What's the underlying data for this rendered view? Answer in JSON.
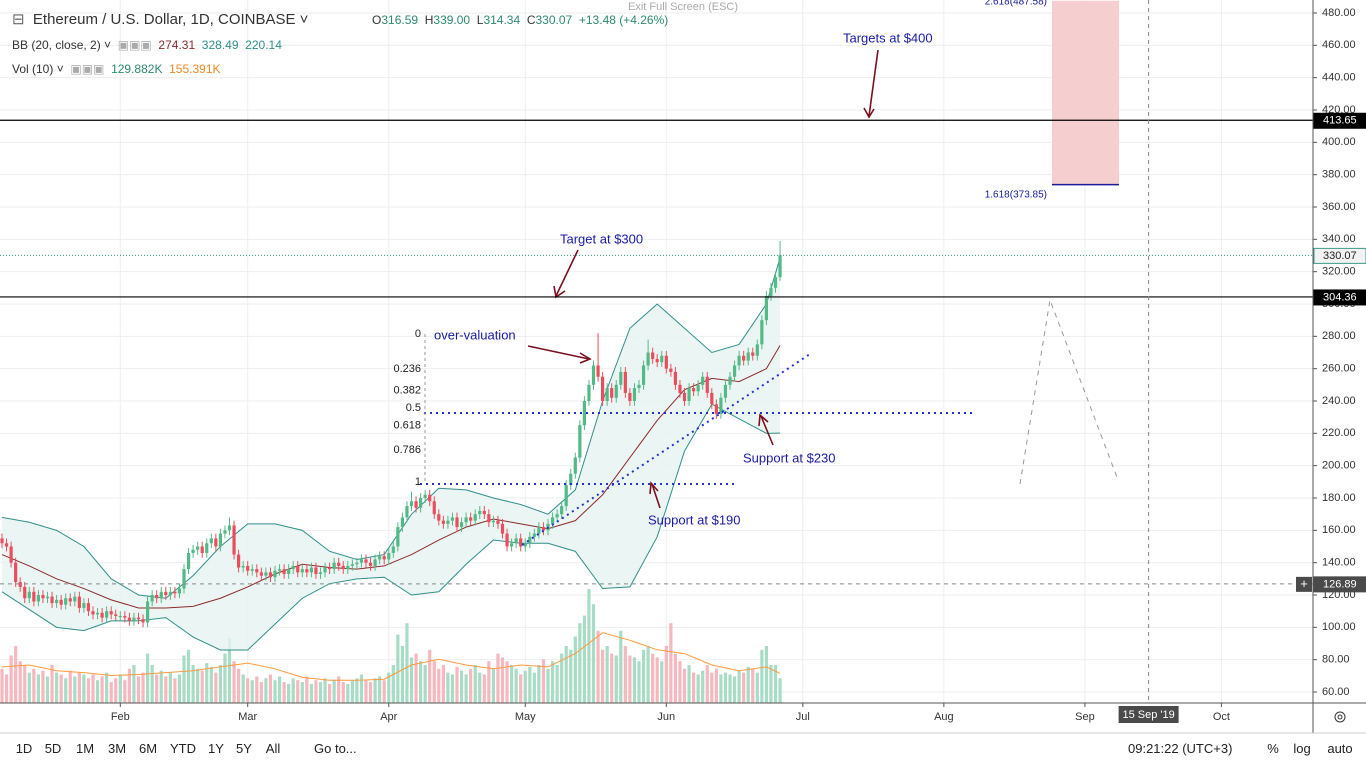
{
  "header": {
    "symbol": "Ethereum / U.S. Dollar, 1D, COINBASE",
    "o_label": "O",
    "o": "316.59",
    "h_label": "H",
    "h": "339.00",
    "l_label": "L",
    "l": "314.34",
    "c_label": "C",
    "c": "330.07",
    "change": "+13.48 (+4.26%)",
    "exit": "Exit Full Screen (ESC)"
  },
  "indicators": {
    "bb": {
      "name": "BB (20, close, 2)",
      "values": [
        "274.31",
        "328.49",
        "220.14"
      ]
    },
    "vol": {
      "name": "Vol (10)",
      "values": [
        "129.882K",
        "155.391K"
      ]
    }
  },
  "toolbar": {
    "ranges": [
      "1D",
      "5D",
      "1M",
      "3M",
      "6M",
      "YTD",
      "1Y",
      "5Y",
      "All"
    ],
    "goto": "Go to...",
    "clock": "09:21:22 (UTC+3)",
    "right": [
      "%",
      "log",
      "auto"
    ]
  },
  "chart_data": {
    "type": "candlestick",
    "open": [
      155,
      152,
      150,
      140,
      128,
      125,
      118,
      122,
      116,
      120,
      118,
      119,
      115,
      117,
      114,
      118,
      116,
      119,
      112,
      115,
      110,
      108,
      109,
      106,
      110,
      108,
      107,
      107,
      106,
      104,
      106,
      105,
      103,
      116,
      120,
      118,
      122,
      120,
      122,
      121,
      124,
      136,
      146,
      148,
      150,
      146,
      152,
      155,
      150,
      158,
      160,
      163,
      145,
      137,
      138,
      135,
      136,
      134,
      132,
      134,
      131,
      135,
      136,
      133,
      136,
      138,
      134,
      136,
      134,
      137,
      133,
      134,
      137,
      136,
      140,
      138,
      136,
      138,
      139,
      140,
      142,
      140,
      138,
      142,
      144,
      142,
      146,
      150,
      162,
      168,
      175,
      178,
      174,
      180,
      182,
      178,
      170,
      166,
      164,
      166,
      168,
      162,
      165,
      168,
      166,
      170,
      172,
      170,
      165,
      166,
      164,
      158,
      150,
      152,
      155,
      150,
      152,
      156,
      158,
      162,
      160,
      164,
      168,
      170,
      175,
      188,
      195,
      205,
      225,
      240,
      250,
      262,
      255,
      240,
      248,
      242,
      250,
      258,
      245,
      240,
      248,
      250,
      262,
      270,
      266,
      264,
      268,
      260,
      258,
      250,
      245,
      240,
      248,
      246,
      250,
      255,
      245,
      238,
      232,
      242,
      250,
      255,
      262,
      268,
      265,
      270,
      268,
      275,
      290,
      305,
      310,
      316.59
    ],
    "high": [
      158,
      155,
      153,
      143,
      131,
      128,
      125,
      125,
      123,
      123,
      122,
      122,
      120,
      120,
      121,
      121,
      122,
      122,
      118,
      118,
      113,
      112,
      112,
      113,
      113,
      111,
      110,
      110,
      109,
      109,
      109,
      108,
      119,
      123,
      123,
      125,
      125,
      125,
      125,
      127,
      139,
      149,
      151,
      153,
      153,
      155,
      158,
      158,
      161,
      163,
      168,
      166,
      148,
      141,
      141,
      139,
      139,
      137,
      137,
      137,
      138,
      139,
      139,
      139,
      141,
      141,
      139,
      139,
      140,
      140,
      137,
      140,
      140,
      143,
      143,
      141,
      141,
      142,
      143,
      145,
      145,
      143,
      145,
      147,
      147,
      149,
      153,
      165,
      171,
      178,
      184,
      181,
      183,
      185,
      185,
      181,
      173,
      169,
      169,
      171,
      171,
      168,
      171,
      171,
      173,
      175,
      175,
      173,
      169,
      169,
      167,
      161,
      155,
      158,
      158,
      155,
      159,
      161,
      165,
      165,
      167,
      171,
      173,
      178,
      191,
      198,
      208,
      228,
      243,
      253,
      265,
      282,
      258,
      251,
      251,
      253,
      261,
      261,
      248,
      251,
      253,
      265,
      278,
      273,
      269,
      271,
      271,
      263,
      261,
      253,
      248,
      251,
      251,
      253,
      258,
      258,
      248,
      241,
      245,
      253,
      258,
      265,
      271,
      271,
      273,
      273,
      278,
      293,
      308,
      313,
      320,
      339
    ],
    "low": [
      149,
      147,
      137,
      125,
      122,
      115,
      115,
      113,
      113,
      115,
      115,
      112,
      112,
      111,
      111,
      113,
      113,
      109,
      109,
      107,
      105,
      105,
      103,
      103,
      105,
      104,
      104,
      103,
      101,
      101,
      102,
      100,
      100,
      113,
      115,
      115,
      117,
      117,
      118,
      118,
      121,
      133,
      143,
      145,
      143,
      143,
      149,
      147,
      147,
      155,
      157,
      142,
      134,
      134,
      132,
      132,
      131,
      129,
      129,
      128,
      128,
      132,
      130,
      130,
      133,
      131,
      131,
      131,
      131,
      130,
      130,
      131,
      133,
      133,
      135,
      133,
      133,
      135,
      136,
      137,
      137,
      135,
      135,
      139,
      139,
      139,
      143,
      147,
      159,
      165,
      172,
      171,
      171,
      177,
      175,
      167,
      163,
      161,
      161,
      163,
      159,
      159,
      162,
      163,
      163,
      167,
      167,
      162,
      162,
      161,
      155,
      147,
      147,
      149,
      147,
      147,
      149,
      153,
      155,
      157,
      157,
      161,
      165,
      167,
      172,
      185,
      192,
      202,
      222,
      237,
      247,
      252,
      237,
      237,
      239,
      239,
      247,
      242,
      237,
      237,
      245,
      247,
      259,
      263,
      261,
      261,
      257,
      255,
      247,
      242,
      237,
      237,
      243,
      243,
      247,
      242,
      235,
      229,
      229,
      239,
      247,
      252,
      259,
      262,
      262,
      265,
      265,
      272,
      287,
      302,
      307,
      314.34
    ],
    "close": [
      152,
      150,
      140,
      128,
      125,
      118,
      122,
      116,
      120,
      118,
      119,
      115,
      117,
      114,
      118,
      116,
      119,
      112,
      115,
      110,
      108,
      109,
      106,
      110,
      108,
      107,
      107,
      106,
      104,
      106,
      105,
      103,
      116,
      120,
      118,
      122,
      120,
      122,
      121,
      124,
      136,
      146,
      148,
      150,
      146,
      152,
      155,
      150,
      158,
      160,
      163,
      145,
      137,
      138,
      135,
      136,
      134,
      132,
      134,
      131,
      135,
      136,
      133,
      136,
      138,
      134,
      136,
      134,
      137,
      133,
      134,
      137,
      136,
      140,
      138,
      136,
      138,
      139,
      140,
      142,
      140,
      138,
      142,
      144,
      142,
      146,
      150,
      162,
      168,
      175,
      178,
      174,
      180,
      182,
      178,
      170,
      166,
      164,
      166,
      168,
      162,
      165,
      168,
      166,
      170,
      172,
      170,
      165,
      166,
      164,
      158,
      150,
      152,
      155,
      150,
      152,
      156,
      158,
      162,
      160,
      164,
      168,
      170,
      175,
      188,
      195,
      205,
      225,
      240,
      250,
      262,
      255,
      240,
      248,
      242,
      250,
      258,
      245,
      240,
      248,
      250,
      262,
      270,
      266,
      264,
      268,
      260,
      258,
      250,
      245,
      240,
      248,
      246,
      250,
      255,
      245,
      238,
      232,
      242,
      250,
      255,
      262,
      268,
      265,
      270,
      268,
      275,
      290,
      305,
      310,
      316.59,
      330.07
    ],
    "up_color": "#53b987",
    "down_color": "#eb4d5c",
    "volume": {
      "values": [
        180,
        150,
        250,
        300,
        220,
        200,
        160,
        180,
        150,
        170,
        140,
        200,
        160,
        150,
        130,
        170,
        140,
        160,
        150,
        130,
        150,
        120,
        140,
        160,
        110,
        130,
        150,
        120,
        180,
        200,
        140,
        160,
        260,
        200,
        150,
        170,
        140,
        160,
        130,
        150,
        250,
        280,
        200,
        180,
        170,
        210,
        190,
        160,
        200,
        260,
        340,
        220,
        180,
        150,
        130,
        120,
        140,
        110,
        130,
        150,
        120,
        140,
        110,
        100,
        130,
        120,
        110,
        140,
        100,
        120,
        110,
        130,
        100,
        120,
        140,
        110,
        100,
        120,
        130,
        150,
        120,
        110,
        130,
        140,
        120,
        160,
        200,
        360,
        300,
        420,
        240,
        260,
        220,
        200,
        280,
        220,
        180,
        200,
        160,
        150,
        190,
        170,
        150,
        180,
        200,
        160,
        150,
        220,
        180,
        260,
        240,
        220,
        200,
        180,
        150,
        170,
        190,
        160,
        200,
        230,
        180,
        220,
        200,
        260,
        300,
        280,
        350,
        420,
        460,
        600,
        520,
        380,
        280,
        300,
        260,
        250,
        380,
        300,
        250,
        240,
        220,
        280,
        300,
        260,
        240,
        220,
        300,
        420,
        260,
        220,
        180,
        200,
        160,
        150,
        170,
        200,
        160,
        180,
        150,
        160,
        150,
        140,
        170,
        160,
        190,
        180,
        160,
        280,
        300,
        200,
        200,
        129.882
      ],
      "ylim": [
        0,
        3700
      ],
      "up_color": "#a9dcc6",
      "down_color": "#f5b8bf",
      "ma": {
        "x": [
          0,
          6,
          12,
          18,
          24,
          30,
          36,
          42,
          48,
          54,
          60,
          66,
          72,
          78,
          84,
          90,
          96,
          102,
          108,
          114,
          120,
          126,
          132,
          138,
          144,
          150,
          156,
          162,
          168,
          171
        ],
        "values": [
          190,
          200,
          170,
          160,
          145,
          150,
          160,
          170,
          190,
          210,
          180,
          135,
          120,
          120,
          125,
          200,
          230,
          200,
          180,
          200,
          190,
          260,
          370,
          330,
          280,
          260,
          200,
          170,
          190,
          155.391
        ],
        "color": "#ff9a3c"
      }
    },
    "bollinger": {
      "x": [
        0,
        6,
        12,
        18,
        24,
        30,
        36,
        42,
        48,
        54,
        60,
        66,
        72,
        78,
        84,
        90,
        96,
        102,
        108,
        114,
        120,
        126,
        132,
        138,
        144,
        150,
        156,
        162,
        168,
        171
      ],
      "upper": [
        168,
        165,
        160,
        150,
        130,
        120,
        118,
        132,
        150,
        164,
        164,
        160,
        147,
        142,
        145,
        170,
        186,
        185,
        180,
        176,
        170,
        185,
        240,
        285,
        300,
        285,
        270,
        275,
        300,
        328.49
      ],
      "basis": [
        145,
        138,
        130,
        124,
        117,
        112,
        112,
        113,
        118,
        125,
        133,
        139,
        137,
        136,
        138,
        145,
        154,
        162,
        167,
        164,
        161,
        166,
        182,
        205,
        228,
        247,
        254,
        252,
        260,
        274.31
      ],
      "lower": [
        122,
        111,
        100,
        98,
        104,
        104,
        106,
        94,
        86,
        86,
        102,
        118,
        127,
        130,
        131,
        120,
        122,
        139,
        154,
        152,
        152,
        147,
        124,
        125,
        156,
        209,
        238,
        229,
        220,
        220.14
      ],
      "color": "#2f8f8a",
      "basis_color": "#8b2a2a",
      "fill": "#e6f4f1"
    },
    "xlim": [
      -0.44,
      288.13
    ],
    "ylim": [
      53.2,
      488.04
    ],
    "xticks": [
      {
        "value": 26,
        "label": "Feb"
      },
      {
        "value": 54,
        "label": "Mar"
      },
      {
        "value": 85,
        "label": "Apr"
      },
      {
        "value": 115,
        "label": "May"
      },
      {
        "value": 146,
        "label": "Jun"
      },
      {
        "value": 176,
        "label": "Jul"
      },
      {
        "value": 207,
        "label": "Aug"
      },
      {
        "value": 238,
        "label": "Sep"
      },
      {
        "value": 268,
        "label": "Oct"
      }
    ],
    "yticks": [
      {
        "value": 60,
        "label": "60.00"
      },
      {
        "value": 80,
        "label": "80.00"
      },
      {
        "value": 100,
        "label": "100.00"
      },
      {
        "value": 120,
        "label": "120.00"
      },
      {
        "value": 140,
        "label": "140.00"
      },
      {
        "value": 160,
        "label": "160.00"
      },
      {
        "value": 180,
        "label": "180.00"
      },
      {
        "value": 200,
        "label": "200.00"
      },
      {
        "value": 220,
        "label": "220.00"
      },
      {
        "value": 240,
        "label": "240.00"
      },
      {
        "value": 260,
        "label": "260.00"
      },
      {
        "value": 280,
        "label": "280.00"
      },
      {
        "value": 300,
        "label": "300.00"
      },
      {
        "value": 320,
        "label": "320.00"
      },
      {
        "value": 340,
        "label": "340.00"
      },
      {
        "value": 360,
        "label": "360.00"
      },
      {
        "value": 380,
        "label": "380.00"
      },
      {
        "value": 400,
        "label": "400.00"
      },
      {
        "value": 420,
        "label": "420.00"
      },
      {
        "value": 440,
        "label": "440.00"
      },
      {
        "value": 460,
        "label": "460.00"
      },
      {
        "value": 480,
        "label": "480.00"
      }
    ],
    "grid": true,
    "last_price": 330.07,
    "levels": [
      413.65,
      304.36
    ],
    "fib_extension": [
      {
        "value": 373.85,
        "label": "1.618(373.85)"
      },
      {
        "value": 487.58,
        "label": "2.618(487.58)"
      }
    ],
    "fib_retracement": [
      0,
      0.236,
      0.382,
      0.5,
      0.618,
      0.786,
      1
    ],
    "annotations": [
      "Targets at $400",
      "Target at $300",
      "over-valuation",
      "Support at $230",
      "Support at $190"
    ],
    "crosshair": {
      "x": 252,
      "x_label": "15 Sep '19",
      "y": 126.89
    }
  }
}
